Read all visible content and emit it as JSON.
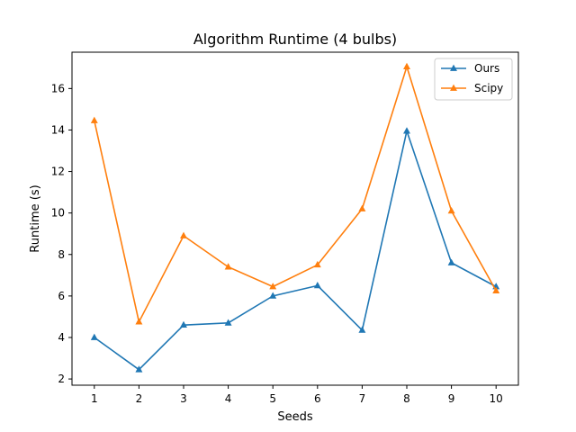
{
  "chart_data": {
    "type": "line",
    "title": "Algorithm Runtime (4 bulbs)",
    "xlabel": "Seeds",
    "ylabel": "Runtime (s)",
    "x": [
      1,
      2,
      3,
      4,
      5,
      6,
      7,
      8,
      9,
      10
    ],
    "xticks": [
      "1",
      "2",
      "3",
      "4",
      "5",
      "6",
      "7",
      "8",
      "9",
      "10"
    ],
    "yticks": [
      "2",
      "4",
      "6",
      "8",
      "10",
      "12",
      "14",
      "16"
    ],
    "xlim": [
      0.5,
      10.5
    ],
    "ylim": [
      1.7,
      17.75
    ],
    "grid": false,
    "legend_position": "top-right",
    "marker": "triangle-up",
    "series": [
      {
        "name": "Ours",
        "color": "#1f77b4",
        "values": [
          4.0,
          2.45,
          4.6,
          4.7,
          6.0,
          6.5,
          4.35,
          13.95,
          7.6,
          6.45
        ]
      },
      {
        "name": "Scipy",
        "color": "#ff7f0e",
        "values": [
          14.45,
          4.75,
          8.9,
          7.4,
          6.45,
          7.5,
          10.2,
          17.05,
          10.1,
          6.25
        ]
      }
    ]
  }
}
